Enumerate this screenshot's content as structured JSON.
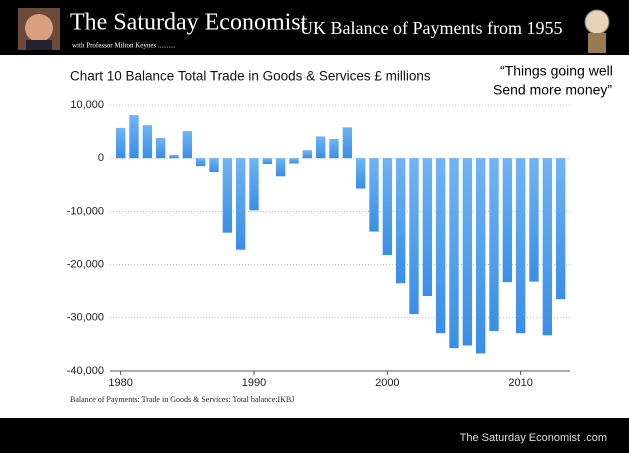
{
  "header": {
    "title": "The Saturday Economist",
    "byline": "with Professor Milton Keynes ..........",
    "subtitle": "UK Balance of Payments from 1955"
  },
  "quote": [
    "“Things going well",
    "Send more money”"
  ],
  "chart_data": {
    "type": "bar",
    "title": "Chart 10 Balance Total Trade in Goods & Services £ millions",
    "x": [
      1980,
      1981,
      1982,
      1983,
      1984,
      1985,
      1986,
      1987,
      1988,
      1989,
      1990,
      1991,
      1992,
      1993,
      1994,
      1995,
      1996,
      1997,
      1998,
      1999,
      2000,
      2001,
      2002,
      2003,
      2004,
      2005,
      2006,
      2007,
      2008,
      2009,
      2010,
      2011,
      2012,
      2013
    ],
    "values": [
      5700,
      8100,
      6200,
      3800,
      600,
      5100,
      -1500,
      -2600,
      -14000,
      -17200,
      -9800,
      -1100,
      -3400,
      -1000,
      1500,
      4100,
      3600,
      5800,
      -5700,
      -13800,
      -18200,
      -23500,
      -29300,
      -25900,
      -32900,
      -35700,
      -35200,
      -36700,
      -32500,
      -23300,
      -32900,
      -23200,
      -33300,
      -26500
    ],
    "color": "#3a8ee6",
    "xlim": [
      1979.2,
      2013.7
    ],
    "xticks": [
      1980,
      1990,
      2000,
      2010
    ],
    "ylim": [
      -40000,
      10000
    ],
    "yticks": [
      {
        "value": -40000,
        "label": "-40,000"
      },
      {
        "value": -30000,
        "label": "-30,000"
      },
      {
        "value": -20000,
        "label": "-20,000"
      },
      {
        "value": -10000,
        "label": "-10,000"
      },
      0,
      {
        "value": 10000,
        "label": "10,000"
      }
    ],
    "grid": true,
    "source": "Balance of Payments: Trade in Goods & Services: Total balance:IKBJ"
  },
  "footer": "The Saturday Economist .com"
}
